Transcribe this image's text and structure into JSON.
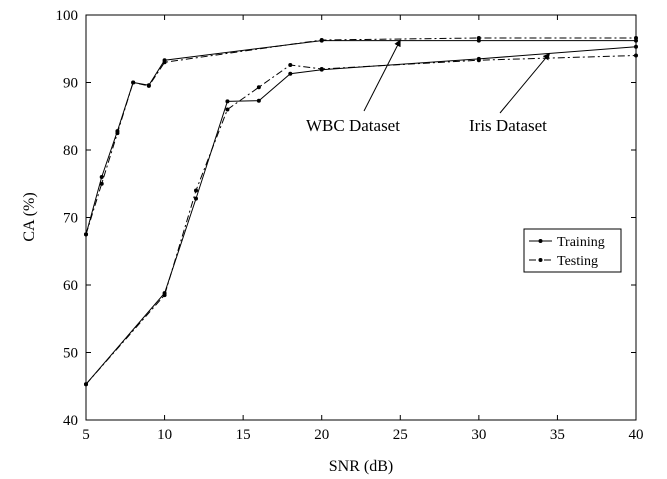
{
  "chart_data": {
    "type": "line",
    "xlabel": "SNR (dB)",
    "ylabel": "CA (%)",
    "xlim": [
      5,
      40
    ],
    "ylim": [
      40,
      100
    ],
    "xticks": [
      5,
      10,
      15,
      20,
      25,
      30,
      35,
      40
    ],
    "yticks": [
      40,
      50,
      60,
      70,
      80,
      90,
      100
    ],
    "grid": false,
    "legend": {
      "placement": "right",
      "entries": [
        {
          "label": "Training",
          "style": "solid"
        },
        {
          "label": "Testing",
          "style": "dashdot"
        }
      ]
    },
    "series": [
      {
        "name": "Training",
        "group": "WBC Dataset",
        "style": "solid",
        "x": [
          5,
          6,
          7,
          8,
          9,
          10,
          20,
          30,
          40
        ],
        "y": [
          67.5,
          76.0,
          82.8,
          90.0,
          89.6,
          93.3,
          96.2,
          96.2,
          96.2
        ]
      },
      {
        "name": "Testing",
        "group": "WBC Dataset",
        "style": "dashdot",
        "x": [
          5,
          6,
          7,
          8,
          9,
          10,
          20,
          30,
          40
        ],
        "y": [
          67.5,
          75.0,
          82.5,
          90.0,
          89.5,
          93.0,
          96.3,
          96.6,
          96.6
        ]
      },
      {
        "name": "Training",
        "group": "Iris Dataset",
        "style": "solid",
        "x": [
          5,
          10,
          12,
          14,
          16,
          18,
          20,
          30,
          40
        ],
        "y": [
          45.3,
          58.8,
          72.8,
          87.2,
          87.3,
          91.3,
          91.9,
          93.5,
          95.3
        ]
      },
      {
        "name": "Testing",
        "group": "Iris Dataset",
        "style": "dashdot",
        "x": [
          5,
          10,
          12,
          14,
          16,
          18,
          20,
          30,
          40
        ],
        "y": [
          45.3,
          58.5,
          74.0,
          86.0,
          89.3,
          92.6,
          92.0,
          93.3,
          94.0
        ]
      }
    ],
    "annotations": [
      {
        "text": "WBC Dataset",
        "arrow_to": [
          25,
          96.3
        ]
      },
      {
        "text": "Iris Dataset",
        "arrow_to": [
          34.5,
          94.3
        ]
      }
    ]
  }
}
